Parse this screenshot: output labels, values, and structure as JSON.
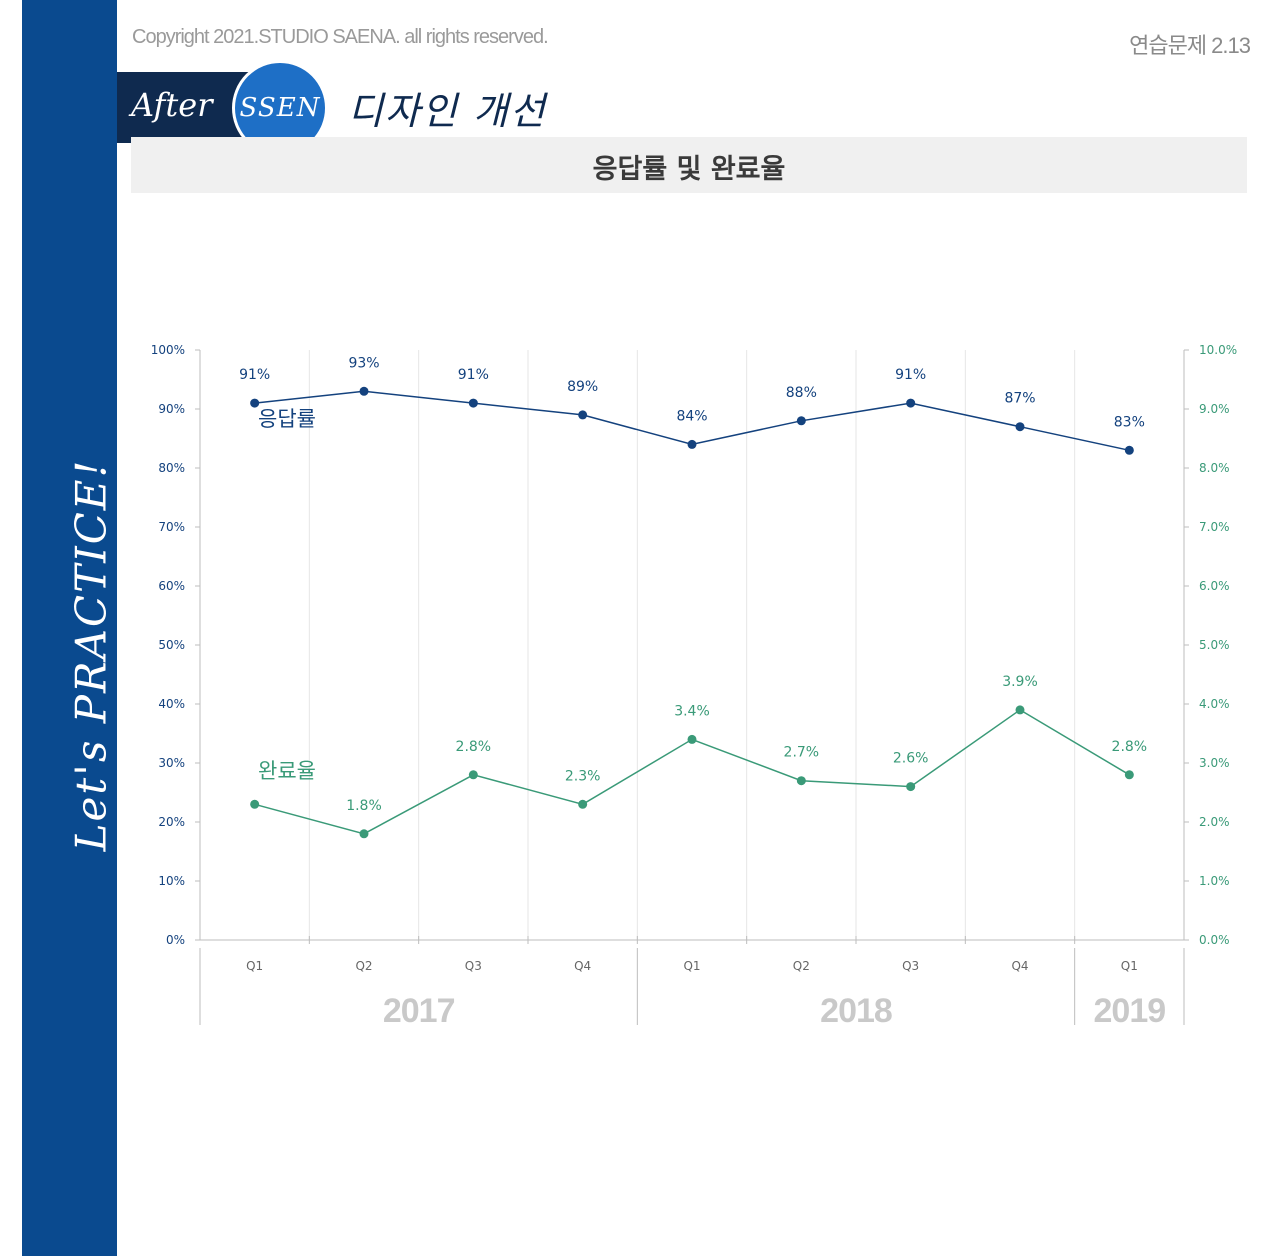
{
  "header": {
    "copyright": "Copyright 2021.STUDIO SAENA. all rights reserved.",
    "page_id": "연습문제 2.13",
    "badge_after": "After",
    "badge_ssen": "SSEN",
    "design_title": "디자인 개선"
  },
  "sidebar": {
    "text": "Let's PRACTICE!"
  },
  "colors": {
    "sidebar": "#0a4a8f",
    "response": "#14427e",
    "completion": "#3a9a78",
    "grid": "#e6e6e6",
    "axis": "#bdbdbd",
    "year_label": "#c9c9c9"
  },
  "chart_data": {
    "type": "line",
    "title": "응답률 및 완료율",
    "categories": [
      "Q1",
      "Q2",
      "Q3",
      "Q4",
      "Q1",
      "Q2",
      "Q3",
      "Q4",
      "Q1"
    ],
    "years": [
      {
        "label": "2017",
        "start": 0,
        "end": 3
      },
      {
        "label": "2018",
        "start": 4,
        "end": 7
      },
      {
        "label": "2019",
        "start": 8,
        "end": 8
      }
    ],
    "y_left": {
      "min": 0,
      "max": 100,
      "step": 10,
      "ticks": [
        "0%",
        "10%",
        "20%",
        "30%",
        "40%",
        "50%",
        "60%",
        "70%",
        "80%",
        "90%",
        "100%"
      ]
    },
    "y_right": {
      "min": 0,
      "max": 10,
      "step": 1,
      "ticks": [
        "0.0%",
        "1.0%",
        "2.0%",
        "3.0%",
        "4.0%",
        "5.0%",
        "6.0%",
        "7.0%",
        "8.0%",
        "9.0%",
        "10.0%"
      ]
    },
    "series": [
      {
        "name": "응답률",
        "axis": "left",
        "values": [
          91,
          93,
          91,
          89,
          84,
          88,
          91,
          87,
          83
        ],
        "labels": [
          "91%",
          "93%",
          "91%",
          "89%",
          "84%",
          "88%",
          "91%",
          "87%",
          "83%"
        ]
      },
      {
        "name": "완료율",
        "axis": "right",
        "values": [
          2.3,
          1.8,
          2.8,
          2.3,
          3.4,
          2.7,
          2.6,
          3.9,
          2.8
        ],
        "labels": [
          "",
          "1.8%",
          "2.8%",
          "2.3%",
          "3.4%",
          "2.7%",
          "2.6%",
          "3.9%",
          "2.8%"
        ]
      }
    ]
  }
}
